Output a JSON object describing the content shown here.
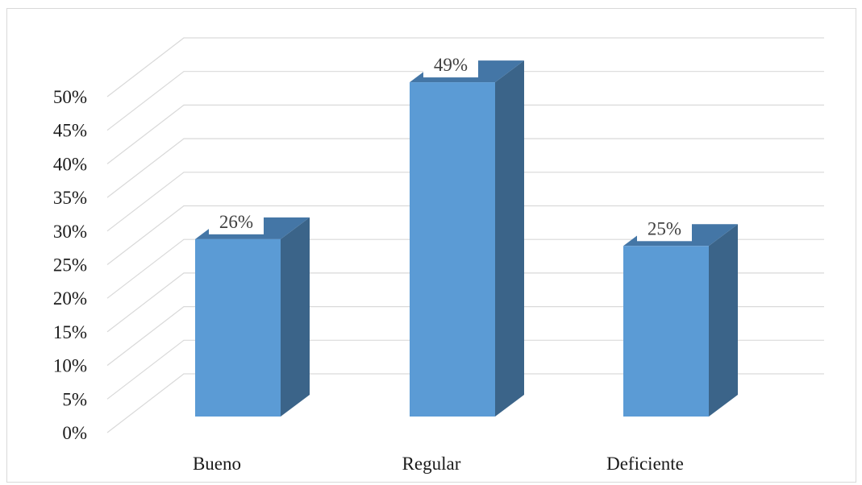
{
  "chart_data": {
    "type": "bar",
    "style": "3d-column",
    "categories": [
      "Bueno",
      "Regular",
      "Deficiente"
    ],
    "values": [
      26,
      49,
      25
    ],
    "data_labels": [
      "26%",
      "49%",
      "25%"
    ],
    "y_ticks": [
      "0%",
      "5%",
      "10%",
      "15%",
      "20%",
      "25%",
      "30%",
      "35%",
      "40%",
      "45%",
      "50%"
    ],
    "ylim": [
      0,
      50
    ],
    "grid": true,
    "legend": "none",
    "colors": {
      "bar_front": "#5b9bd5",
      "bar_side": "#3b6489",
      "bar_top": "#4476a6",
      "grid": "#d9d9d9"
    }
  }
}
